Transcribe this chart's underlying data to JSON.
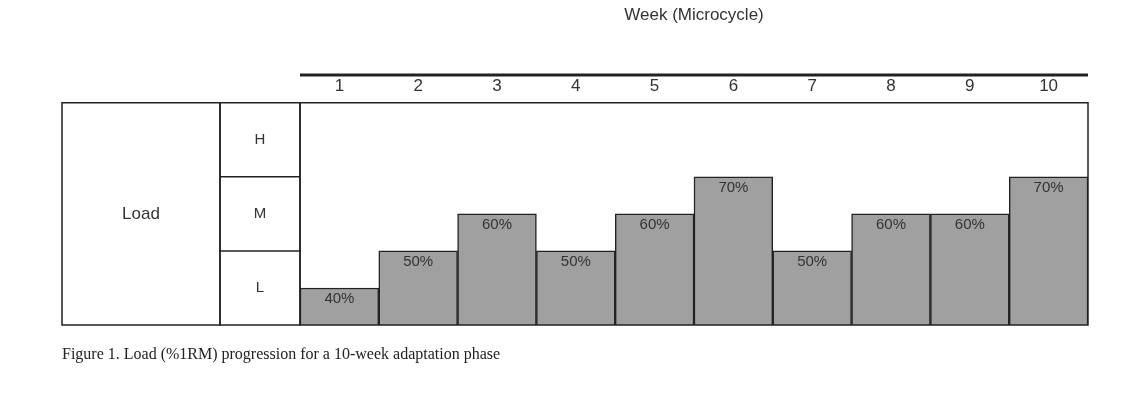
{
  "chart_data": {
    "type": "bar",
    "xlabel": "Week (Microcycle)",
    "categories": [
      "1",
      "2",
      "3",
      "4",
      "5",
      "6",
      "7",
      "8",
      "9",
      "10"
    ],
    "values": [
      40,
      50,
      60,
      50,
      60,
      70,
      50,
      60,
      60,
      70
    ],
    "value_labels": [
      "40%",
      "50%",
      "60%",
      "50%",
      "60%",
      "70%",
      "50%",
      "60%",
      "60%",
      "70%"
    ],
    "color": "#a0a0a0",
    "ylim": [
      30,
      90
    ],
    "tick_labels": "x",
    "grid": false,
    "legend": false,
    "annotations": [
      "Load",
      "H",
      "M",
      "L",
      "Figure 1.  Load (%1RM) progression for a 10-week adaptation phase"
    ]
  }
}
